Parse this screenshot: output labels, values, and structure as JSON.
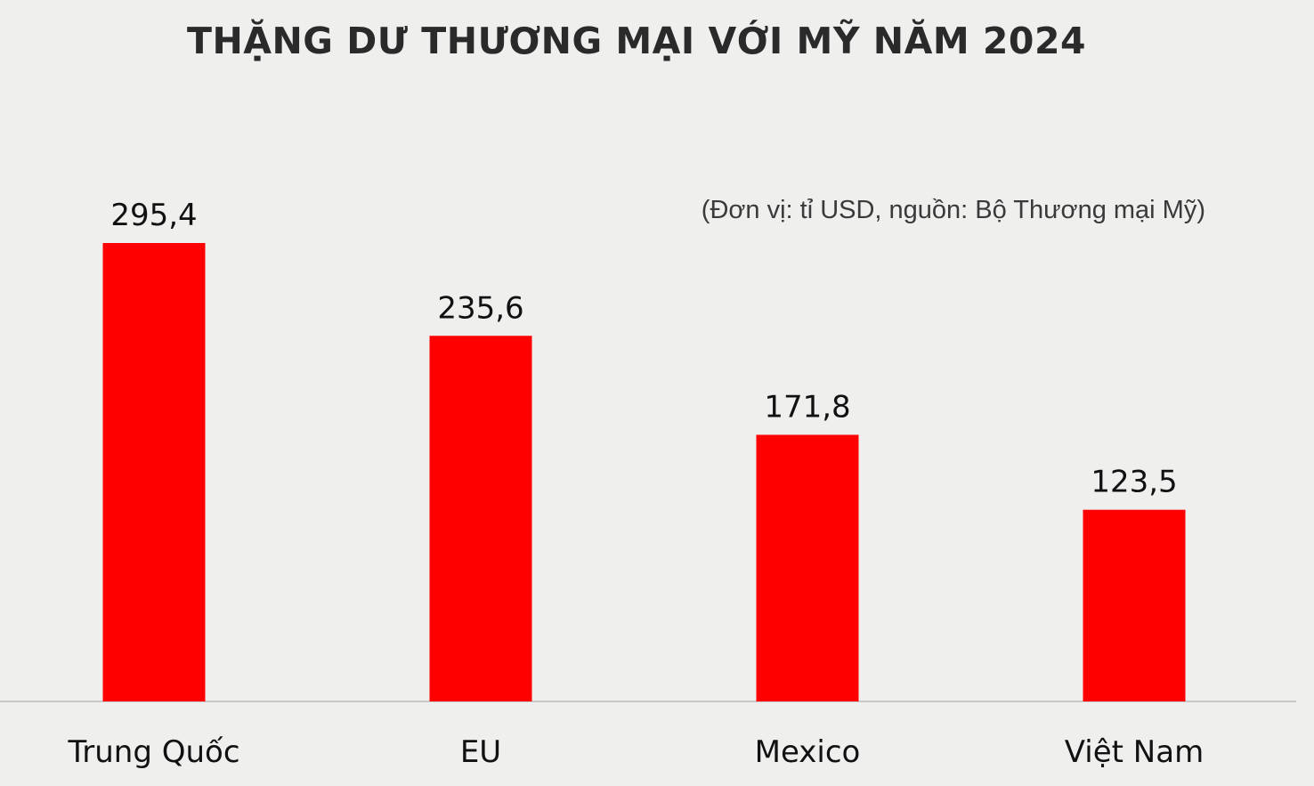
{
  "chart_data": {
    "type": "bar",
    "title": "THẶNG DƯ THƯƠNG MẠI VỚI MỸ NĂM 2024",
    "subtitle": "(Đơn vị: tỉ USD, nguồn: Bộ Thương mại Mỹ)",
    "categories": [
      "Trung Quốc",
      "EU",
      "Mexico",
      "Việt Nam"
    ],
    "value_labels": [
      "295,4",
      "235,6",
      "171,8",
      "123,5"
    ],
    "values": [
      295.4,
      235.6,
      171.8,
      123.5
    ],
    "xlabel": "",
    "ylabel": "",
    "ylim": [
      0,
      295.4
    ],
    "grid": false,
    "legend": "none",
    "bar_color": "#ff0000"
  }
}
